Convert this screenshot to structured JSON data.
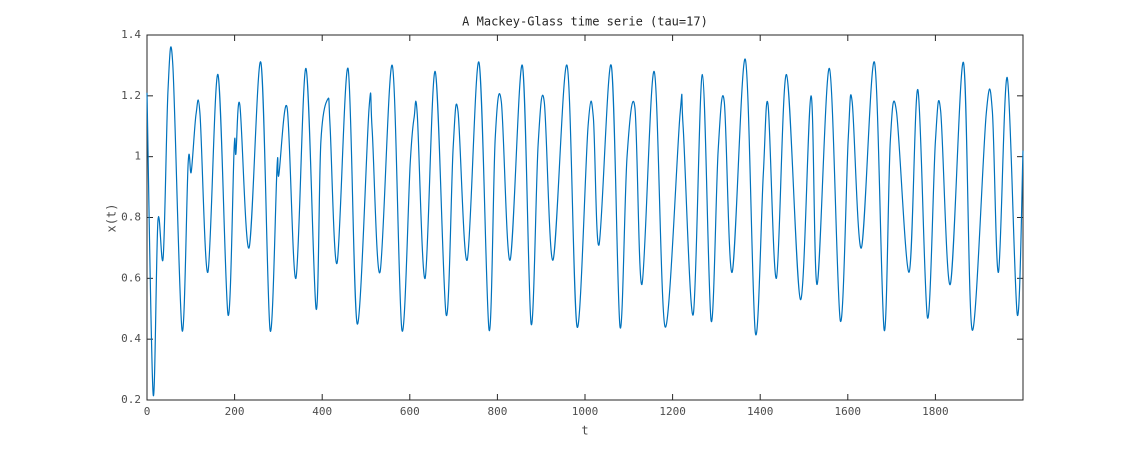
{
  "chart_data": {
    "type": "line",
    "title": "A Mackey-Glass time serie (tau=17)",
    "x_label": "t",
    "y_label": "x(t)",
    "x": [
      0,
      14,
      25,
      37,
      48,
      59,
      80,
      94,
      101,
      112,
      121,
      139,
      162,
      185,
      199,
      203,
      212,
      233,
      260,
      281,
      297,
      301,
      320,
      340,
      363,
      386,
      397,
      413,
      418,
      434,
      459,
      480,
      507,
      514,
      532,
      560,
      582,
      601,
      610,
      617,
      635,
      658,
      683,
      699,
      710,
      731,
      758,
      781,
      795,
      809,
      829,
      857,
      877,
      893,
      907,
      927,
      959,
      982,
      1007,
      1019,
      1032,
      1060,
      1080,
      1096,
      1114,
      1130,
      1158,
      1183,
      1217,
      1224,
      1247,
      1268,
      1288,
      1304,
      1318,
      1336,
      1366,
      1389,
      1407,
      1418,
      1437,
      1460,
      1492,
      1516,
      1530,
      1558,
      1583,
      1601,
      1610,
      1631,
      1661,
      1683,
      1697,
      1711,
      1740,
      1760,
      1782,
      1800,
      1812,
      1834,
      1864,
      1884,
      1916,
      1930,
      1944,
      1964,
      1987,
      2000
    ],
    "series": [
      {
        "name": "x(t)",
        "color": "#0072bd",
        "values": [
          1.21,
          0.22,
          0.79,
          0.67,
          1.22,
          1.3,
          0.43,
          0.98,
          0.95,
          1.14,
          1.14,
          0.62,
          1.27,
          0.48,
          1.03,
          1.01,
          1.17,
          0.7,
          1.31,
          0.43,
          0.97,
          0.94,
          1.16,
          0.6,
          1.29,
          0.5,
          1.05,
          1.19,
          1.1,
          0.65,
          1.29,
          0.45,
          1.16,
          1.09,
          0.62,
          1.3,
          0.43,
          0.98,
          1.13,
          1.14,
          0.6,
          1.28,
          0.48,
          1.03,
          1.15,
          0.66,
          1.31,
          0.43,
          1.06,
          1.18,
          0.66,
          1.3,
          0.45,
          1.04,
          1.18,
          0.66,
          1.3,
          0.44,
          1.1,
          1.13,
          0.71,
          1.3,
          0.44,
          1.0,
          1.16,
          0.58,
          1.28,
          0.44,
          1.14,
          1.1,
          0.48,
          1.27,
          0.46,
          1.02,
          1.18,
          0.62,
          1.32,
          0.42,
          0.94,
          1.17,
          0.6,
          1.27,
          0.53,
          1.2,
          0.58,
          1.29,
          0.46,
          1.06,
          1.18,
          0.7,
          1.31,
          0.43,
          1.05,
          1.15,
          0.62,
          1.22,
          0.47,
          1.05,
          1.15,
          0.58,
          1.31,
          0.43,
          1.14,
          1.15,
          0.62,
          1.26,
          0.48,
          1.02
        ]
      }
    ],
    "xlim": [
      0,
      2000
    ],
    "xticks": [
      0,
      200,
      400,
      600,
      800,
      1000,
      1200,
      1400,
      1600,
      1800
    ],
    "ylim": [
      0.2,
      1.4
    ],
    "yticks": [
      0.2,
      0.4,
      0.6,
      0.8,
      1,
      1.2,
      1.4
    ]
  }
}
